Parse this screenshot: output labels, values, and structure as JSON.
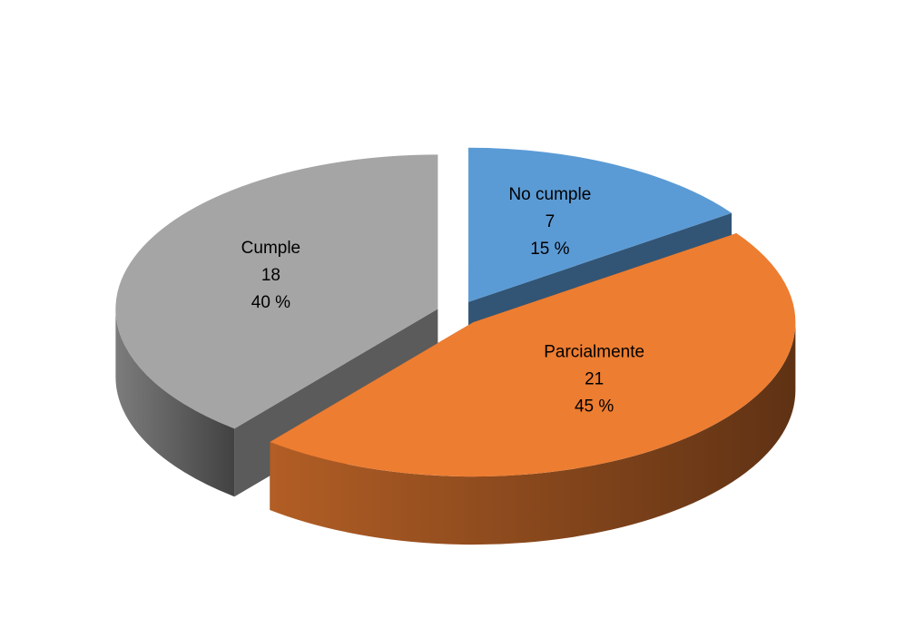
{
  "chart_data": {
    "type": "pie3d",
    "categories": [
      "No cumple",
      "Parcialmente",
      "Cumple"
    ],
    "values": [
      7,
      21,
      18
    ],
    "percentages": {
      "values": [
        15,
        45,
        40
      ],
      "value_labels": [
        "15 %",
        "45 %",
        "40 %"
      ]
    },
    "colors": [
      "#5b9bd5",
      "#ed7d31",
      "#a5a5a5"
    ]
  }
}
